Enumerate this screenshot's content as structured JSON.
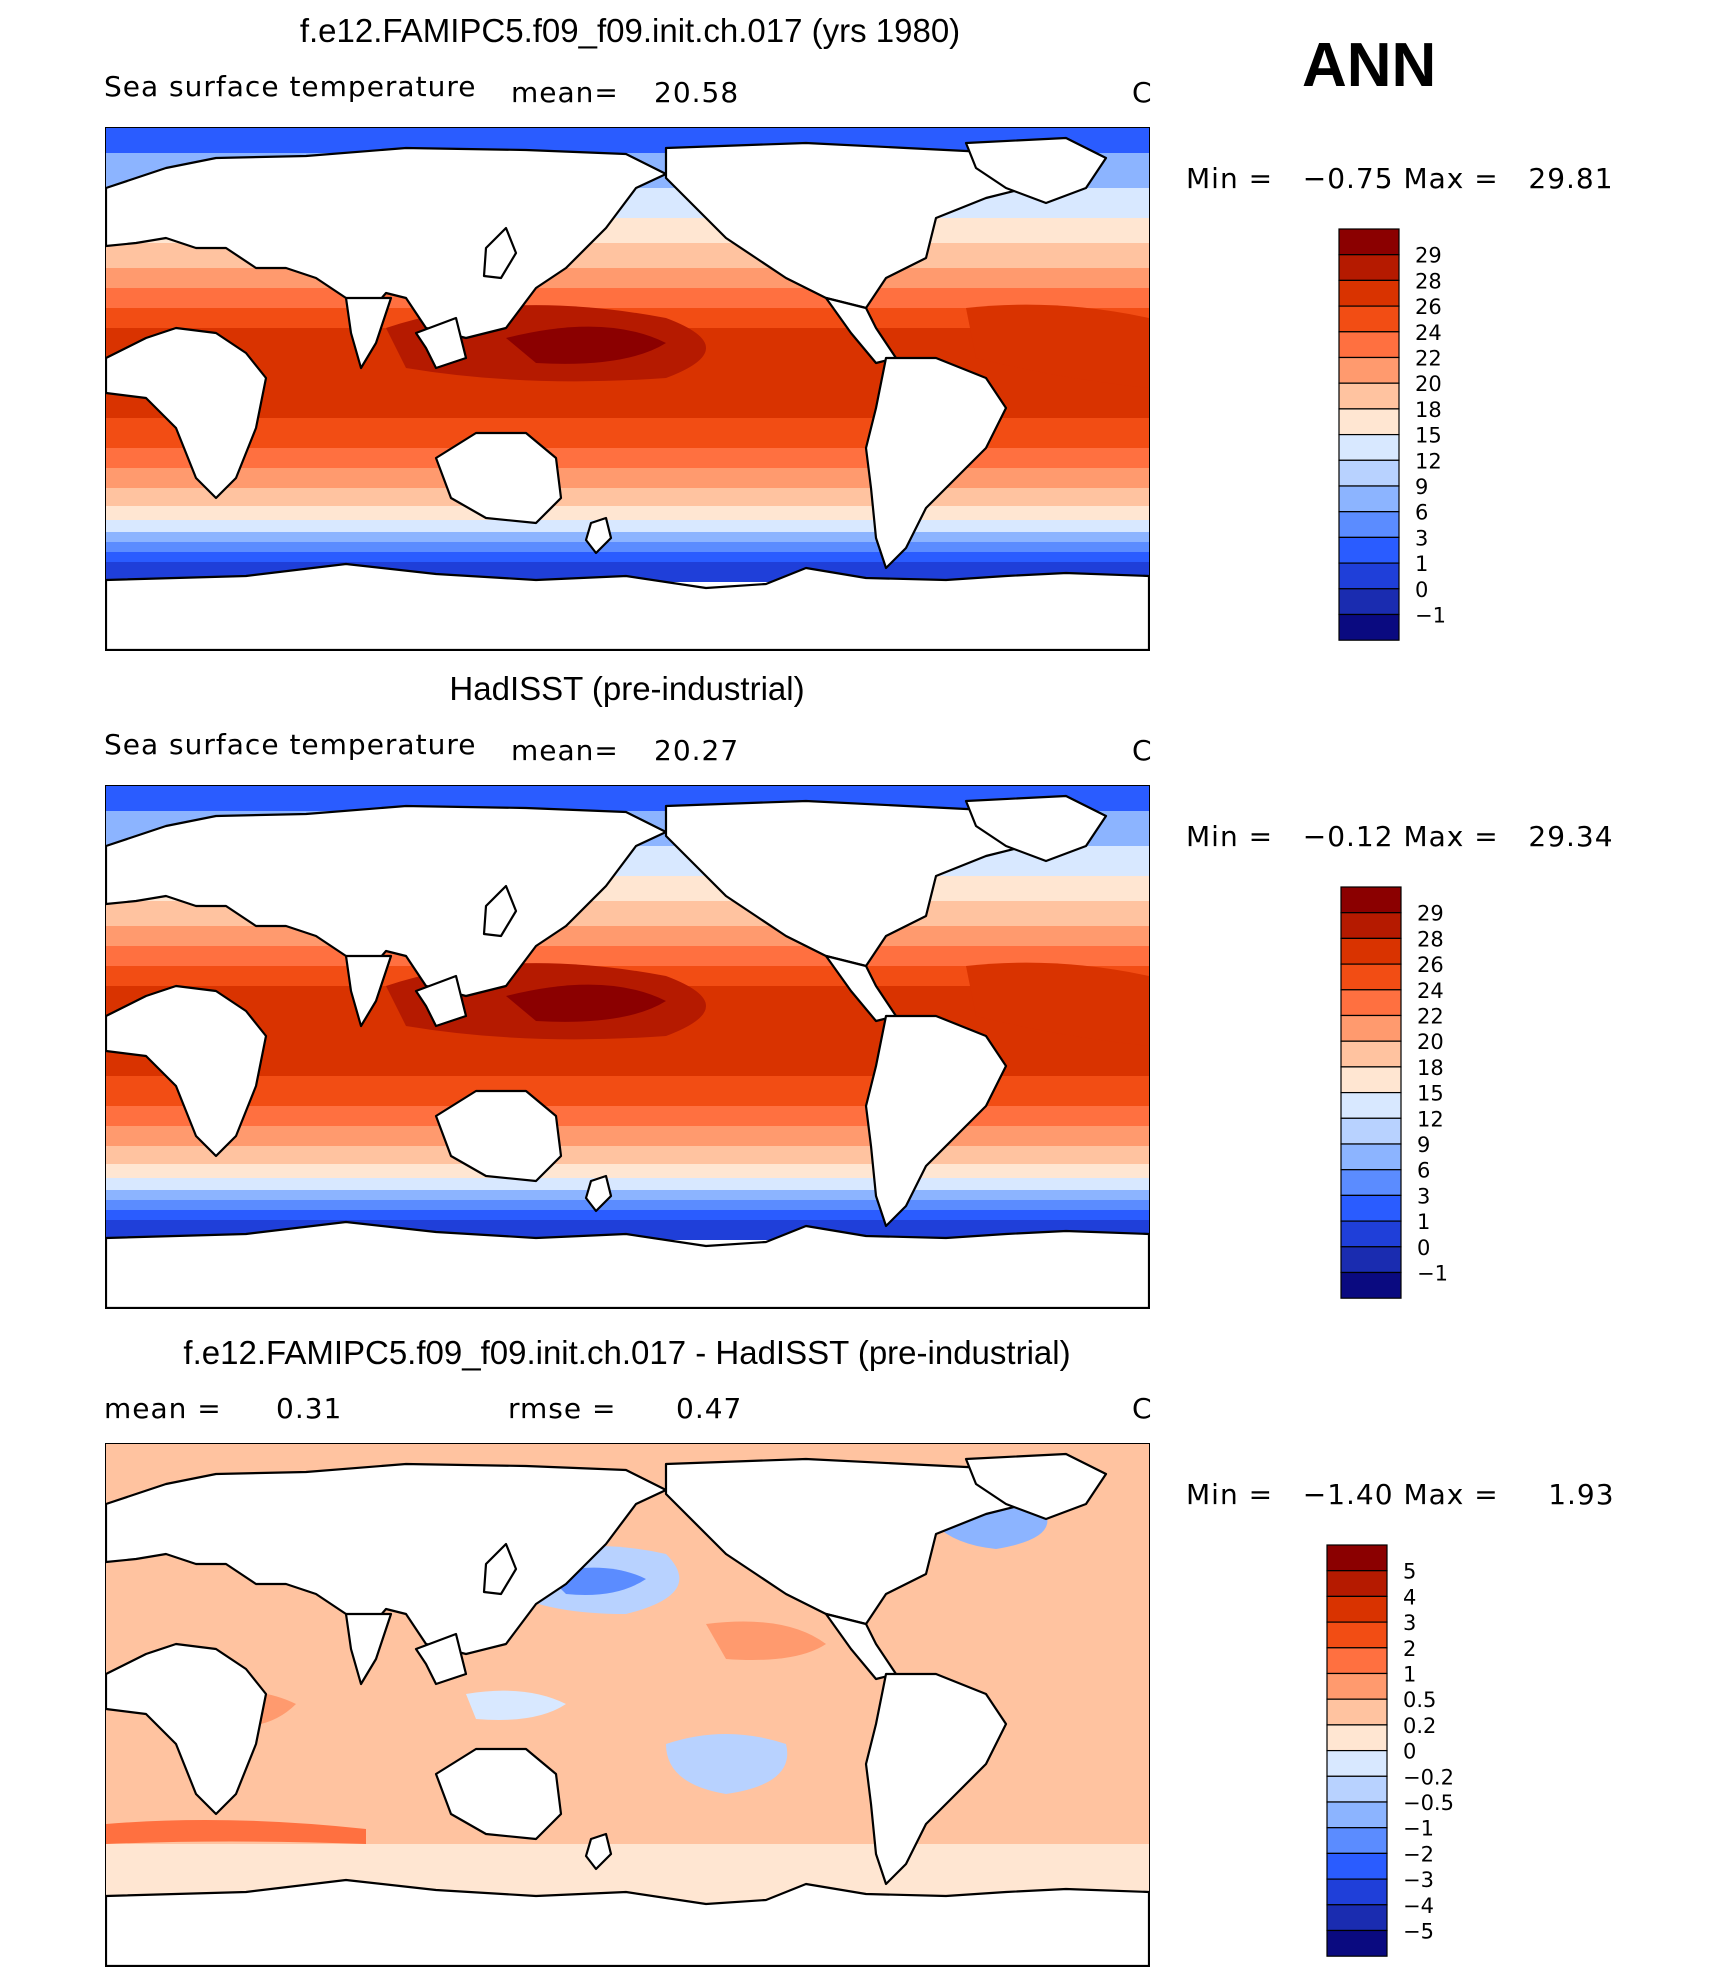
{
  "header": {
    "season": "ANN"
  },
  "panels": [
    {
      "id": "model",
      "title": "f.e12.FAMIPC5.f09_f09.init.ch.017 (yrs 1980)",
      "left_label": "Sea surface temperature",
      "stat1_label": "mean=",
      "stat1_value": "20.58",
      "units": "C",
      "range_text": "Min =   −0.75 Max =   29.81",
      "colorbar": {
        "labels": [
          "29",
          "28",
          "26",
          "24",
          "22",
          "20",
          "18",
          "15",
          "12",
          "9",
          "6",
          "3",
          "1",
          "0",
          "−1"
        ],
        "colors": [
          "#8b0000",
          "#b51a00",
          "#d93300",
          "#f24d14",
          "#ff7040",
          "#ff9a6e",
          "#ffc3a0",
          "#ffe6d2",
          "#d8e8ff",
          "#b8d2ff",
          "#8cb4ff",
          "#5b8cff",
          "#2a5cff",
          "#1f3fd9",
          "#1a2cb0",
          "#0a0a80"
        ]
      }
    },
    {
      "id": "obs",
      "title": "HadISST (pre-industrial)",
      "left_label": "Sea surface temperature",
      "stat1_label": "mean=",
      "stat1_value": "20.27",
      "units": "C",
      "range_text": "Min =   −0.12 Max =   29.34",
      "colorbar": {
        "labels": [
          "29",
          "28",
          "26",
          "24",
          "22",
          "20",
          "18",
          "15",
          "12",
          "9",
          "6",
          "3",
          "1",
          "0",
          "−1"
        ],
        "colors": [
          "#8b0000",
          "#b51a00",
          "#d93300",
          "#f24d14",
          "#ff7040",
          "#ff9a6e",
          "#ffc3a0",
          "#ffe6d2",
          "#d8e8ff",
          "#b8d2ff",
          "#8cb4ff",
          "#5b8cff",
          "#2a5cff",
          "#1f3fd9",
          "#1a2cb0",
          "#0a0a80"
        ]
      }
    },
    {
      "id": "diff",
      "title": "f.e12.FAMIPC5.f09_f09.init.ch.017 - HadISST (pre-industrial)",
      "left_label": "mean =",
      "left_value": "0.31",
      "stat1_label": "rmse =",
      "stat1_value": "0.47",
      "units": "C",
      "range_text": "Min =   −1.40 Max =     1.93",
      "colorbar": {
        "labels": [
          "5",
          "4",
          "3",
          "2",
          "1",
          "0.5",
          "0.2",
          "0",
          "−0.2",
          "−0.5",
          "−1",
          "−2",
          "−3",
          "−4",
          "−5"
        ],
        "colors": [
          "#8b0000",
          "#b51a00",
          "#d93300",
          "#f24d14",
          "#ff7040",
          "#ff9a6e",
          "#ffc3a0",
          "#ffe6d2",
          "#d8e8ff",
          "#b8d2ff",
          "#8cb4ff",
          "#5b8cff",
          "#2a5cff",
          "#1f3fd9",
          "#1a2cb0",
          "#0a0a80"
        ]
      }
    }
  ],
  "chart_data": [
    {
      "type": "heatmap",
      "title": "f.e12.FAMIPC5.f09_f09.init.ch.017 (yrs 1980)",
      "variable": "Sea surface temperature",
      "units": "C",
      "mean": 20.58,
      "min": -0.75,
      "max": 29.81,
      "contour_levels": [
        -1,
        0,
        1,
        3,
        6,
        9,
        12,
        15,
        18,
        20,
        22,
        24,
        26,
        28,
        29
      ]
    },
    {
      "type": "heatmap",
      "title": "HadISST (pre-industrial)",
      "variable": "Sea surface temperature",
      "units": "C",
      "mean": 20.27,
      "min": -0.12,
      "max": 29.34,
      "contour_levels": [
        -1,
        0,
        1,
        3,
        6,
        9,
        12,
        15,
        18,
        20,
        22,
        24,
        26,
        28,
        29
      ]
    },
    {
      "type": "heatmap",
      "title": "f.e12.FAMIPC5.f09_f09.init.ch.017 - HadISST (pre-industrial)",
      "units": "C",
      "mean": 0.31,
      "rmse": 0.47,
      "min": -1.4,
      "max": 1.93,
      "contour_levels": [
        -5,
        -4,
        -3,
        -2,
        -1,
        -0.5,
        -0.2,
        0,
        0.2,
        0.5,
        1,
        2,
        3,
        4,
        5
      ]
    }
  ]
}
